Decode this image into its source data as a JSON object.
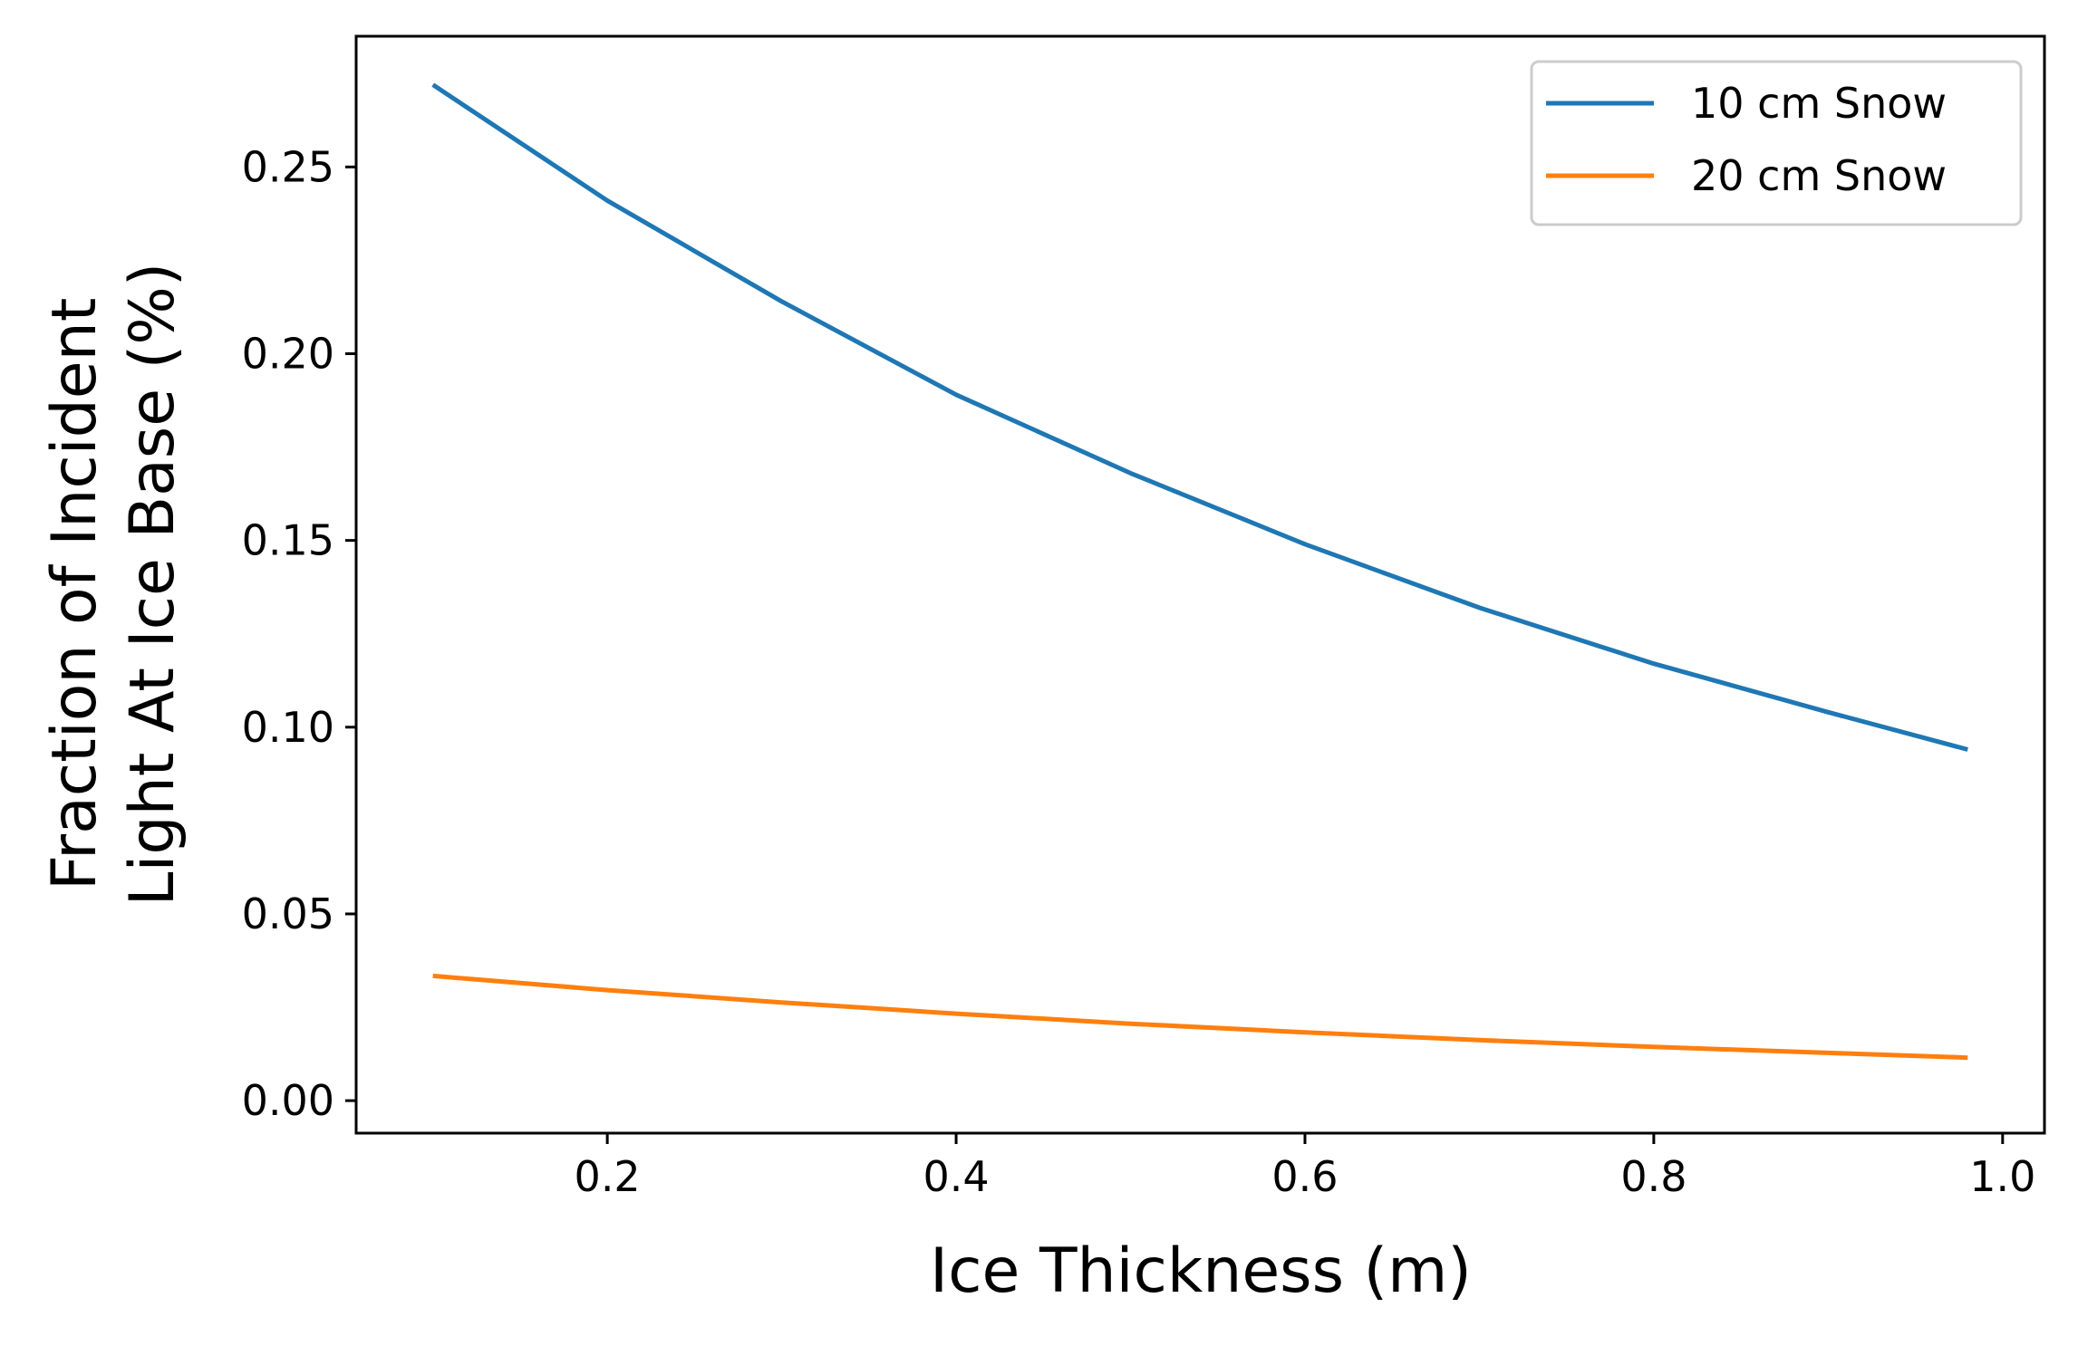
{
  "chart_data": {
    "type": "line",
    "title": "",
    "xlabel": "Ice Thickness (m)",
    "ylabel": "Fraction of Incident Light At Ice Base (%)",
    "ylabel_lines": [
      "Fraction of Incident",
      "Light At Ice Base (%)"
    ],
    "xlim": [
      0.056,
      1.024
    ],
    "ylim": [
      -0.0087,
      0.285
    ],
    "xticks": [
      0.2,
      0.4,
      0.6,
      0.8,
      1.0
    ],
    "xtick_labels": [
      "0.2",
      "0.4",
      "0.6",
      "0.8",
      "1.0"
    ],
    "yticks": [
      0.0,
      0.05,
      0.1,
      0.15,
      0.2,
      0.25
    ],
    "ytick_labels": [
      "0.00",
      "0.05",
      "0.10",
      "0.15",
      "0.20",
      "0.25"
    ],
    "grid": false,
    "legend_position": "top-right",
    "x": [
      0.1,
      0.2,
      0.3,
      0.4,
      0.5,
      0.6,
      0.7,
      0.8,
      0.9,
      0.98
    ],
    "series": [
      {
        "name": "10 cm Snow",
        "color": "#1f77b4",
        "values": [
          0.272,
          0.241,
          0.214,
          0.189,
          0.168,
          0.149,
          0.132,
          0.117,
          0.104,
          0.094
        ]
      },
      {
        "name": "20 cm Snow",
        "color": "#ff7f0e",
        "values": [
          0.0334,
          0.0296,
          0.0263,
          0.0233,
          0.0206,
          0.0183,
          0.0162,
          0.0144,
          0.0128,
          0.0115
        ]
      }
    ]
  }
}
